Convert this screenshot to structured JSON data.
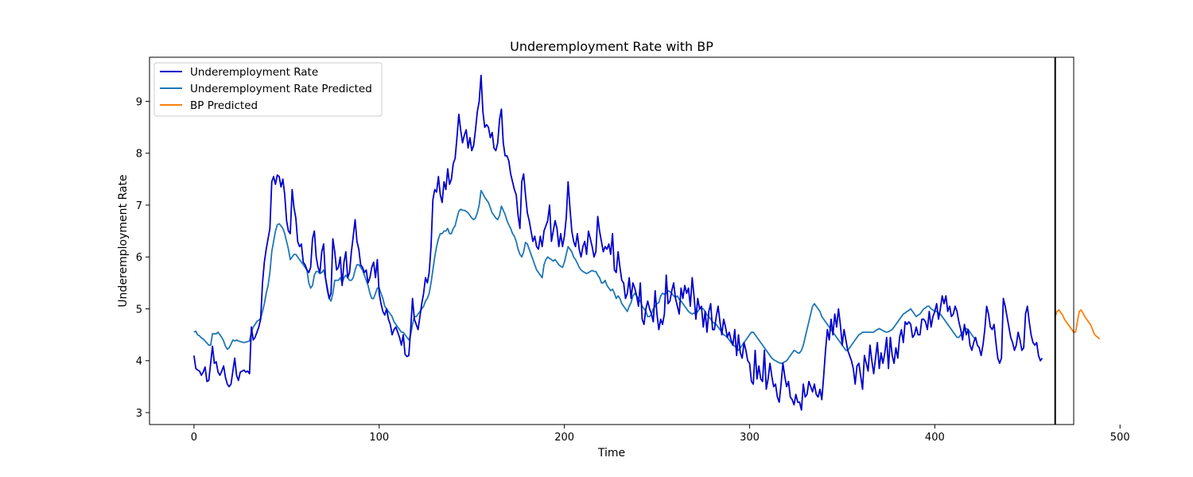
{
  "chart_data": {
    "type": "line",
    "title": "Underemployment Rate with BP",
    "xlabel": "Time",
    "ylabel": "Underemployment Rate",
    "xlim": [
      -24,
      475
    ],
    "ylim": [
      2.77,
      9.85
    ],
    "x_ticks": [
      0,
      100,
      200,
      300,
      400,
      500
    ],
    "y_ticks": [
      3,
      4,
      5,
      6,
      7,
      8,
      9
    ],
    "grid": false,
    "legend_position": "upper left",
    "vertical_line": {
      "x": 465,
      "color": "#000000"
    },
    "series": [
      {
        "name": "Underemployment Rate",
        "color": "#0000cd",
        "x_start": 0,
        "values": [
          4.1,
          3.85,
          3.82,
          3.8,
          3.72,
          3.78,
          3.88,
          3.6,
          3.62,
          3.95,
          4.28,
          3.95,
          3.98,
          3.78,
          3.72,
          3.8,
          3.9,
          3.68,
          3.55,
          3.5,
          3.55,
          3.8,
          4.05,
          3.72,
          3.62,
          3.78,
          3.8,
          3.82,
          3.78,
          3.8,
          3.75,
          4.65,
          4.4,
          4.45,
          4.55,
          4.65,
          4.8,
          5.5,
          5.9,
          6.15,
          6.35,
          6.55,
          7.45,
          7.55,
          7.4,
          7.58,
          7.55,
          7.35,
          7.5,
          7.2,
          6.7,
          6.5,
          6.45,
          7.3,
          6.95,
          6.75,
          6.3,
          6.2,
          6.25,
          5.9,
          5.85,
          5.75,
          5.7,
          5.8,
          6.35,
          6.5,
          6.0,
          5.8,
          5.7,
          6.1,
          6.25,
          5.6,
          5.4,
          5.2,
          5.3,
          6.35,
          6.1,
          5.75,
          5.8,
          6.0,
          5.45,
          5.9,
          6.1,
          5.6,
          5.7,
          6.1,
          6.4,
          6.72,
          6.3,
          6.15,
          5.85,
          5.8,
          5.7,
          5.75,
          5.5,
          5.6,
          5.8,
          5.9,
          5.6,
          5.95,
          5.3,
          5.1,
          4.95,
          4.88,
          5.0,
          4.8,
          4.7,
          4.5,
          4.6,
          4.65,
          4.55,
          4.45,
          4.3,
          4.5,
          4.12,
          4.08,
          4.1,
          4.6,
          5.2,
          4.8,
          4.7,
          4.6,
          4.85,
          5.1,
          5.3,
          5.6,
          5.5,
          5.7,
          6.2,
          7.1,
          7.3,
          7.25,
          7.55,
          7.2,
          7.05,
          7.45,
          7.3,
          7.7,
          7.4,
          7.5,
          7.8,
          7.9,
          8.3,
          8.75,
          8.45,
          8.2,
          8.35,
          8.45,
          8.1,
          8.3,
          8.05,
          8.15,
          8.45,
          8.8,
          9.0,
          9.5,
          8.8,
          8.5,
          8.55,
          8.5,
          8.3,
          8.4,
          8.1,
          8.05,
          8.2,
          8.65,
          8.85,
          8.2,
          7.95,
          7.95,
          7.85,
          7.6,
          7.45,
          7.3,
          7.2,
          6.8,
          6.55,
          7.45,
          7.6,
          7.2,
          6.85,
          6.7,
          6.5,
          6.3,
          6.4,
          6.2,
          6.15,
          6.4,
          6.2,
          6.5,
          6.6,
          6.7,
          7.0,
          6.3,
          6.5,
          6.7,
          6.55,
          6.2,
          6.45,
          6.2,
          6.4,
          6.75,
          7.45,
          6.95,
          6.5,
          6.3,
          6.2,
          6.45,
          6.15,
          6.0,
          6.2,
          6.3,
          6.05,
          6.5,
          6.35,
          6.2,
          6.0,
          6.1,
          6.78,
          6.5,
          6.3,
          6.1,
          6.2,
          6.15,
          6.25,
          6.05,
          6.45,
          5.75,
          5.7,
          6.1,
          5.8,
          5.55,
          5.5,
          5.2,
          5.3,
          5.6,
          5.2,
          5.5,
          5.4,
          5.25,
          5.05,
          5.5,
          4.8,
          4.7,
          5.0,
          5.15,
          5.0,
          4.9,
          4.75,
          5.35,
          4.9,
          4.6,
          4.8,
          4.7,
          4.9,
          5.65,
          5.1,
          5.15,
          5.35,
          5.5,
          5.2,
          5.05,
          4.9,
          5.4,
          5.2,
          5.45,
          5.3,
          5.4,
          5.05,
          5.6,
          5.25,
          4.8,
          5.2,
          5.0,
          5.05,
          4.65,
          4.95,
          4.55,
          4.95,
          5.1,
          4.6,
          4.6,
          4.85,
          5.05,
          4.75,
          4.5,
          4.8,
          4.65,
          4.45,
          4.55,
          4.4,
          4.3,
          4.6,
          4.1,
          4.5,
          4.15,
          4.05,
          4.35,
          4.2,
          4.0,
          3.95,
          3.6,
          3.55,
          4.2,
          3.65,
          3.9,
          3.65,
          3.6,
          4.2,
          3.45,
          3.65,
          3.95,
          3.7,
          3.5,
          3.55,
          3.3,
          3.2,
          3.55,
          3.95,
          3.7,
          3.5,
          3.6,
          3.3,
          3.25,
          3.15,
          3.35,
          3.2,
          3.2,
          3.05,
          3.55,
          3.3,
          3.35,
          3.6,
          3.5,
          3.4,
          3.55,
          3.35,
          3.3,
          3.45,
          3.25,
          3.7,
          4.2,
          4.6,
          4.4,
          4.8,
          4.5,
          4.9,
          4.65,
          5.0,
          4.7,
          4.3,
          4.6,
          4.4,
          4.2,
          4.1,
          4.0,
          3.85,
          3.55,
          3.9,
          3.95,
          3.7,
          3.45,
          4.1,
          3.95,
          3.8,
          4.3,
          4.0,
          3.75,
          4.05,
          4.35,
          3.85,
          4.15,
          3.95,
          4.15,
          4.45,
          3.85,
          4.45,
          4.1,
          3.95,
          4.25,
          4.05,
          4.45,
          4.6,
          4.35,
          4.75,
          4.7,
          4.75,
          4.7,
          4.45,
          4.5,
          4.65,
          4.5,
          4.5,
          4.8,
          4.8,
          4.75,
          4.6,
          4.95,
          4.65,
          4.85,
          4.95,
          5.1,
          4.8,
          5.0,
          5.25,
          5.1,
          5.25,
          4.95,
          5.05,
          4.85,
          4.9,
          5.05,
          4.95,
          4.75,
          4.6,
          4.4,
          4.7,
          4.5,
          4.6,
          4.3,
          4.2,
          4.35,
          4.45,
          4.3,
          4.25,
          4.1,
          4.3,
          4.6,
          5.05,
          4.9,
          4.65,
          4.6,
          4.7,
          4.35,
          4.05,
          3.95,
          4.05,
          5.2,
          5.05,
          4.85,
          4.65,
          4.45,
          4.35,
          4.2,
          4.3,
          4.55,
          4.4,
          4.2,
          4.25,
          4.9,
          5.05,
          4.75,
          4.5,
          4.35,
          4.3,
          4.35,
          4.1,
          4.0,
          4.05
        ]
      },
      {
        "name": "Underemployment Rate Predicted",
        "color": "#1f77b4",
        "x_start": 0,
        "values": [
          4.55,
          4.57,
          4.5,
          4.48,
          4.44,
          4.42,
          4.38,
          4.34,
          4.3,
          4.3,
          4.52,
          4.52,
          4.52,
          4.55,
          4.5,
          4.45,
          4.38,
          4.28,
          4.22,
          4.25,
          4.32,
          4.4,
          4.38,
          4.4,
          4.38,
          4.37,
          4.36,
          4.35,
          4.36,
          4.37,
          4.38,
          4.55,
          4.65,
          4.7,
          4.76,
          4.78,
          4.82,
          4.95,
          5.1,
          5.3,
          5.45,
          5.7,
          6.1,
          6.3,
          6.5,
          6.62,
          6.64,
          6.6,
          6.55,
          6.45,
          6.3,
          6.15,
          5.95,
          6.0,
          6.05,
          6.05,
          6.0,
          5.95,
          5.9,
          5.85,
          5.8,
          5.75,
          5.5,
          5.4,
          5.45,
          5.65,
          5.72,
          5.72,
          5.68,
          5.7,
          5.75,
          5.6,
          5.35,
          5.2,
          5.15,
          5.3,
          5.55,
          5.55,
          5.55,
          5.6,
          5.5,
          5.6,
          5.65,
          5.6,
          5.55,
          5.55,
          5.6,
          5.75,
          5.85,
          5.85,
          5.8,
          5.75,
          5.65,
          5.55,
          5.45,
          5.3,
          5.2,
          5.2,
          5.3,
          5.4,
          5.4,
          5.3,
          5.2,
          5.05,
          5.0,
          4.95,
          4.9,
          4.85,
          4.75,
          4.7,
          4.65,
          4.6,
          4.55,
          4.55,
          4.5,
          4.45,
          4.4,
          4.5,
          4.7,
          4.85,
          4.85,
          4.9,
          4.95,
          5.0,
          5.05,
          5.15,
          5.2,
          5.3,
          5.5,
          5.75,
          6.0,
          6.2,
          6.35,
          6.45,
          6.45,
          6.5,
          6.5,
          6.55,
          6.45,
          6.45,
          6.55,
          6.6,
          6.75,
          6.88,
          6.92,
          6.9,
          6.9,
          6.88,
          6.85,
          6.8,
          6.75,
          6.72,
          6.75,
          6.85,
          7.0,
          7.28,
          7.22,
          7.15,
          7.1,
          7.05,
          6.95,
          6.85,
          6.8,
          6.75,
          6.72,
          6.8,
          6.98,
          6.9,
          6.82,
          6.7,
          6.62,
          6.55,
          6.45,
          6.4,
          6.3,
          6.15,
          6.05,
          6.0,
          6.1,
          6.28,
          6.25,
          6.15,
          6.05,
          5.95,
          5.85,
          5.75,
          5.7,
          5.65,
          5.6,
          5.85,
          5.95,
          6.0,
          5.97,
          5.95,
          5.92,
          5.95,
          5.9,
          5.85,
          5.82,
          5.8,
          5.9,
          6.05,
          6.2,
          6.15,
          6.1,
          6.0,
          5.95,
          5.88,
          5.8,
          5.75,
          5.72,
          5.7,
          5.68,
          5.7,
          5.72,
          5.74,
          5.72,
          5.72,
          5.65,
          5.6,
          5.5,
          5.5,
          5.55,
          5.45,
          5.4,
          5.35,
          5.38,
          5.3,
          5.2,
          5.25,
          5.2,
          5.1,
          5.05,
          5.0,
          4.95,
          5.05,
          5.12,
          5.25,
          5.3,
          5.25,
          5.2,
          5.15,
          5.05,
          5.0,
          4.95,
          4.85,
          4.85,
          4.9,
          5.0,
          5.05,
          5.1,
          5.12,
          5.25,
          5.3,
          5.28,
          5.3,
          5.35,
          5.33,
          5.3,
          5.25,
          5.22,
          5.25,
          5.18,
          5.15,
          5.1,
          5.05,
          5.0,
          4.95,
          4.92,
          4.9,
          4.92,
          4.9,
          4.95,
          5.0,
          5.02,
          5.0,
          4.95,
          4.88,
          4.85,
          4.8,
          4.75,
          4.72,
          4.7,
          4.65,
          4.6,
          4.55,
          4.5,
          4.48,
          4.45,
          4.4,
          4.35,
          4.3,
          4.28,
          4.25,
          4.2,
          4.25,
          4.3,
          4.35,
          4.4,
          4.45,
          4.5,
          4.55,
          4.55,
          4.5,
          4.45,
          4.4,
          4.35,
          4.3,
          4.25,
          4.2,
          4.15,
          4.1,
          4.05,
          4.02,
          4.0,
          3.98,
          3.96,
          3.95,
          3.96,
          3.98,
          4.0,
          4.05,
          4.1,
          4.15,
          4.2,
          4.18,
          4.15,
          4.15,
          4.2,
          4.3,
          4.45,
          4.6,
          4.75,
          4.9,
          5.05,
          5.1,
          5.05,
          5.0,
          4.95,
          4.85,
          4.8,
          4.75,
          4.7,
          4.65,
          4.6,
          4.55,
          4.5,
          4.45,
          4.4,
          4.35,
          4.3,
          4.25,
          4.2,
          4.2,
          4.25,
          4.3,
          4.35,
          4.4,
          4.45,
          4.5,
          4.52,
          4.55,
          4.55,
          4.55,
          4.55,
          4.55,
          4.55,
          4.55,
          4.58,
          4.6,
          4.62,
          4.6,
          4.58,
          4.56,
          4.55,
          4.56,
          4.58,
          4.6,
          4.65,
          4.7,
          4.75,
          4.8,
          4.85,
          4.9,
          4.92,
          4.95,
          4.97,
          5.0,
          4.95,
          4.9,
          4.85,
          4.88,
          4.9,
          4.95,
          5.0,
          5.02,
          5.05,
          5.05,
          5.0,
          4.98,
          4.95,
          4.95,
          4.92,
          4.9,
          4.85,
          4.8,
          4.75,
          4.7,
          4.65,
          4.6,
          4.55,
          4.5,
          4.45,
          4.45,
          4.5,
          4.55,
          4.6,
          4.62,
          4.6,
          4.55,
          4.5,
          4.45,
          4.4
        ]
      },
      {
        "name": "BP Predicted",
        "color": "#ff7f0e",
        "x_start": 465,
        "values": [
          4.85,
          4.95,
          4.98,
          4.93,
          4.88,
          4.8,
          4.75,
          4.7,
          4.65,
          4.6,
          4.55,
          4.55,
          4.75,
          4.95,
          4.98,
          4.92,
          4.85,
          4.8,
          4.75,
          4.7,
          4.62,
          4.52,
          4.48,
          4.45,
          4.42
        ]
      }
    ]
  }
}
